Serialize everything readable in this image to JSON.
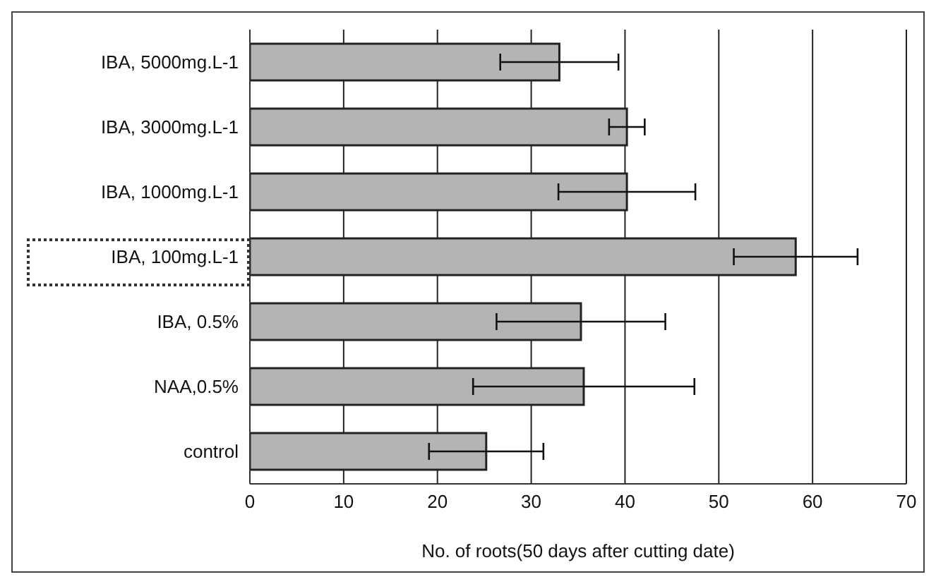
{
  "chart_data": {
    "type": "bar",
    "orientation": "horizontal",
    "xlabel": "No. of roots(50 days after cutting date)",
    "categories": [
      "IBA, 5000mg.L-1",
      "IBA, 3000mg.L-1",
      "IBA, 1000mg.L-1",
      "IBA, 100mg.L-1",
      "IBA, 0.5%",
      "NAA,0.5%",
      "control"
    ],
    "values": [
      33,
      40.2,
      40.2,
      58.2,
      35.3,
      35.6,
      25.2
    ],
    "errors": [
      6.3,
      1.9,
      7.3,
      6.6,
      9,
      11.8,
      6.1
    ],
    "color": "#b4b4b4",
    "xlim": [
      0,
      70
    ],
    "xticks": [
      0,
      10,
      20,
      30,
      40,
      50,
      60,
      70
    ],
    "grid": "x"
  }
}
